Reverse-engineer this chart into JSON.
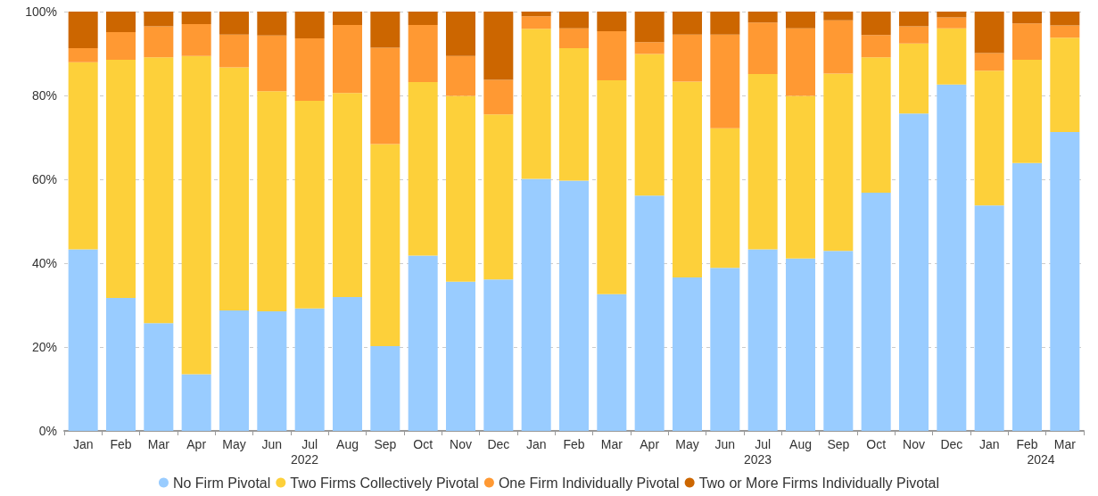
{
  "chart_data": {
    "type": "bar",
    "stacked": true,
    "categories": [
      "Jan",
      "Feb",
      "Mar",
      "Apr",
      "May",
      "Jun",
      "Jul",
      "Aug",
      "Sep",
      "Oct",
      "Nov",
      "Dec",
      "Jan",
      "Feb",
      "Mar",
      "Apr",
      "May",
      "Jun",
      "Jul",
      "Aug",
      "Sep",
      "Oct",
      "Nov",
      "Dec",
      "Jan",
      "Feb",
      "Mar"
    ],
    "series": [
      {
        "name": "No Firm Pivotal",
        "color": "#99ccff",
        "values": [
          43.3,
          31.7,
          25.7,
          13.5,
          28.7,
          28.5,
          29.2,
          31.9,
          20.2,
          41.8,
          35.6,
          36.1,
          60.1,
          59.7,
          32.6,
          56.1,
          36.6,
          38.9,
          43.3,
          41.1,
          42.9,
          56.8,
          75.7,
          82.6,
          53.8,
          63.9,
          71.3
        ]
      },
      {
        "name": "Two Firms Collectively Pivotal",
        "color": "#fdd03a",
        "values": [
          44.6,
          56.8,
          63.4,
          75.9,
          58.0,
          52.5,
          49.5,
          48.7,
          48.2,
          41.4,
          44.3,
          39.4,
          35.8,
          31.6,
          51.0,
          33.8,
          46.7,
          33.3,
          41.8,
          38.8,
          42.3,
          32.3,
          16.7,
          13.4,
          32.1,
          24.6,
          22.5
        ]
      },
      {
        "name": "One Firm Individually Pivotal",
        "color": "#ff9933",
        "values": [
          3.4,
          6.6,
          7.4,
          7.6,
          7.8,
          13.3,
          14.9,
          16.2,
          23.0,
          13.6,
          9.5,
          8.2,
          3.0,
          4.7,
          11.7,
          2.8,
          11.2,
          22.3,
          12.3,
          16.1,
          12.7,
          5.3,
          4.1,
          2.6,
          4.2,
          8.7,
          2.9
        ]
      },
      {
        "name": "Two or More Firms Individually Pivotal",
        "color": "#cc6600",
        "values": [
          8.7,
          4.9,
          3.5,
          3.0,
          5.5,
          5.7,
          6.4,
          3.2,
          8.6,
          3.2,
          10.6,
          16.3,
          1.1,
          4.0,
          4.7,
          7.3,
          5.5,
          5.5,
          2.6,
          4.0,
          2.1,
          5.6,
          3.5,
          1.4,
          9.9,
          2.8,
          3.3
        ]
      }
    ],
    "ylim": [
      0,
      100
    ],
    "yticks": [
      {
        "value": 0,
        "label": "0%"
      },
      {
        "value": 20,
        "label": "20%"
      },
      {
        "value": 40,
        "label": "40%"
      },
      {
        "value": 60,
        "label": "60%"
      },
      {
        "value": 80,
        "label": "80%"
      },
      {
        "value": 100,
        "label": "100%"
      }
    ],
    "grid": "y",
    "legend": "bottom",
    "annotations": [
      "2022",
      "2023",
      "2024"
    ]
  }
}
